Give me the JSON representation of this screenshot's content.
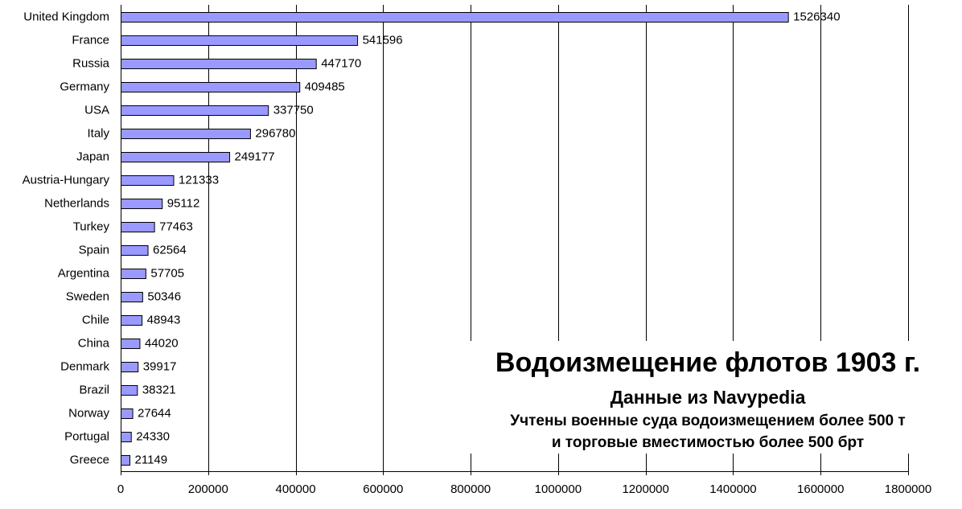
{
  "chart_data": {
    "type": "bar",
    "orientation": "horizontal",
    "categories": [
      "United Kingdom",
      "France",
      "Russia",
      "Germany",
      "USA",
      "Italy",
      "Japan",
      "Austria-Hungary",
      "Netherlands",
      "Turkey",
      "Spain",
      "Argentina",
      "Sweden",
      "Chile",
      "China",
      "Denmark",
      "Brazil",
      "Norway",
      "Portugal",
      "Greece"
    ],
    "values": [
      1526340,
      541596,
      447170,
      409485,
      337750,
      296780,
      249177,
      121333,
      95112,
      77463,
      62564,
      57705,
      50346,
      48943,
      44020,
      39917,
      38321,
      27644,
      24330,
      21149
    ],
    "xlim": [
      0,
      1800000
    ],
    "xticks": [
      0,
      200000,
      400000,
      600000,
      800000,
      1000000,
      1200000,
      1400000,
      1600000,
      1800000
    ],
    "title": "Водоизмещение флотов 1903 г.",
    "subtitle": "Данные из Navypedia",
    "note_line1": "Учтены военные суда водоизмещением более 500 т",
    "note_line2": "и торговые вместимостью более 500 брт",
    "grid": "vertical",
    "bar_color": "#9999ff",
    "legend": "none"
  }
}
